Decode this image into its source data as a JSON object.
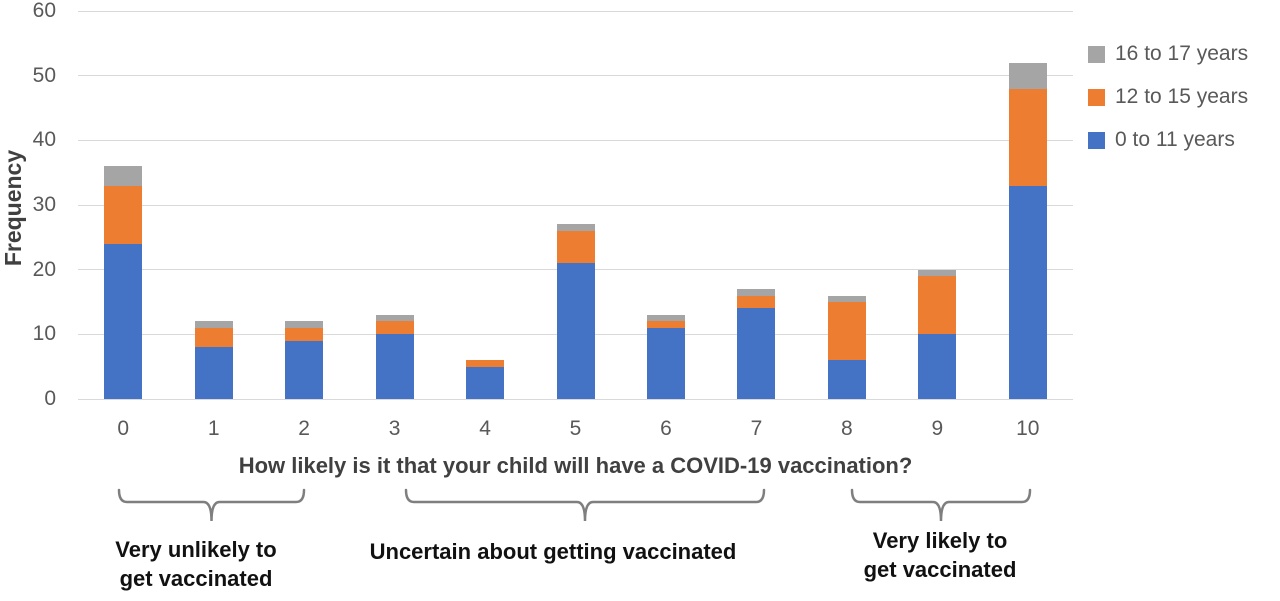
{
  "chart_data": {
    "type": "bar",
    "stacked": true,
    "title": "",
    "xlabel": "How likely is it that your child will have a COVID-19 vaccination?",
    "ylabel": "Frequency",
    "categories": [
      "0",
      "1",
      "2",
      "3",
      "4",
      "5",
      "6",
      "7",
      "8",
      "9",
      "10"
    ],
    "series": [
      {
        "name": "0 to 11 years",
        "color": "#4472C4",
        "values": [
          24,
          8,
          9,
          10,
          5,
          21,
          11,
          14,
          6,
          10,
          33
        ]
      },
      {
        "name": "12 to 15 years",
        "color": "#ED7D31",
        "values": [
          9,
          3,
          2,
          2,
          1,
          5,
          1,
          2,
          9,
          9,
          15
        ]
      },
      {
        "name": "16 to 17 years",
        "color": "#A5A5A5",
        "values": [
          3,
          1,
          1,
          1,
          0,
          1,
          1,
          1,
          1,
          1,
          4
        ]
      }
    ],
    "stack_totals": [
      36,
      12,
      12,
      13,
      6,
      27,
      13,
      17,
      16,
      20,
      52
    ],
    "ylim": [
      0,
      60
    ],
    "yticks": [
      0,
      10,
      20,
      30,
      40,
      50,
      60
    ],
    "grid": true,
    "legend_position": "right"
  },
  "legend": {
    "items": [
      {
        "label": "16 to 17 years",
        "color": "#A5A5A5"
      },
      {
        "label": "12 to 15 years",
        "color": "#ED7D31"
      },
      {
        "label": "0 to 11 years",
        "color": "#4472C4"
      }
    ]
  },
  "annotations": {
    "very_unlikely": {
      "line1": "Very unlikely to",
      "line2": "get vaccinated"
    },
    "uncertain": {
      "line1": "Uncertain about getting vaccinated"
    },
    "very_likely": {
      "line1": "Very likely to",
      "line2": "get vaccinated"
    }
  },
  "colors": {
    "gridline": "#D9D9D9",
    "tick_label": "#595959",
    "axis_title": "#404040",
    "annotation": "#111111",
    "brace": "#7F7F7F"
  }
}
